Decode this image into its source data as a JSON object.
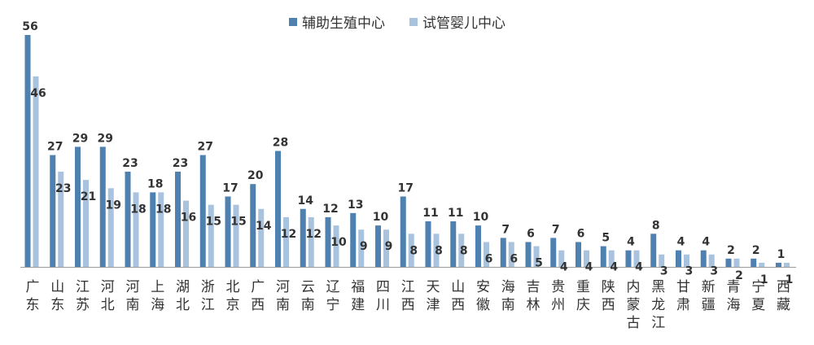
{
  "chart_data": {
    "type": "bar",
    "title": "",
    "xlabel": "",
    "ylabel": "",
    "ylim": [
      0,
      56
    ],
    "grid": false,
    "legend_position": "top",
    "categories": [
      "广东",
      "山东",
      "江苏",
      "河北",
      "河南",
      "上海",
      "湖北",
      "浙江",
      "北京",
      "广西",
      "河南",
      "云南",
      "辽宁",
      "福建",
      "四川",
      "江西",
      "天津",
      "山西",
      "安徽",
      "海南",
      "吉林",
      "贵州",
      "重庆",
      "陕西",
      "内蒙古",
      "黑龙江",
      "甘肃",
      "新疆",
      "青海",
      "宁夏",
      "西藏"
    ],
    "series": [
      {
        "name": "辅助生殖中心",
        "color": "#4f81b0",
        "values": [
          56,
          27,
          29,
          29,
          23,
          18,
          23,
          27,
          17,
          20,
          28,
          14,
          12,
          13,
          10,
          17,
          11,
          11,
          10,
          7,
          6,
          7,
          6,
          5,
          4,
          8,
          4,
          4,
          2,
          2,
          1
        ]
      },
      {
        "name": "试管婴儿中心",
        "color": "#a9c3de",
        "values": [
          46,
          23,
          21,
          19,
          18,
          18,
          16,
          15,
          15,
          14,
          12,
          12,
          10,
          9,
          9,
          8,
          8,
          8,
          6,
          6,
          5,
          4,
          4,
          4,
          4,
          3,
          3,
          3,
          2,
          1,
          1
        ]
      }
    ]
  }
}
